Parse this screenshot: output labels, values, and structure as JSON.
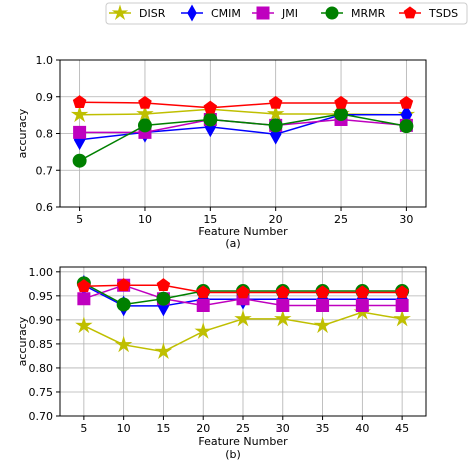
{
  "legend": {
    "placement": "top",
    "entries": [
      {
        "name": "DISR",
        "color": "#bfbf00",
        "marker": "star"
      },
      {
        "name": "CMIM",
        "color": "#0000ff",
        "marker": "diamond"
      },
      {
        "name": "JMI",
        "color": "#bf00bf",
        "marker": "square"
      },
      {
        "name": "MRMR",
        "color": "#008000",
        "marker": "circle"
      },
      {
        "name": "TSDS",
        "color": "#ff0000",
        "marker": "pentagon"
      }
    ]
  },
  "chart_data": [
    {
      "type": "line",
      "caption": "(a)",
      "xlabel": "Feature Number",
      "ylabel": "accuracy",
      "xlim": [
        3.5,
        31.5
      ],
      "ylim": [
        0.6,
        1.0
      ],
      "xticks": [
        5,
        10,
        15,
        20,
        25,
        30
      ],
      "yticks": [
        0.6,
        0.7,
        0.8,
        0.9,
        1.0
      ],
      "ytick_labels": [
        "0.6",
        "0.7",
        "0.8",
        "0.9",
        "1.0"
      ],
      "grid": true,
      "x": [
        5,
        10,
        15,
        20,
        25,
        30
      ],
      "series": [
        {
          "name": "DISR",
          "values": [
            0.851,
            0.853,
            0.866,
            0.853,
            0.853,
            0.851
          ]
        },
        {
          "name": "CMIM",
          "values": [
            0.783,
            0.803,
            0.818,
            0.798,
            0.851,
            0.851
          ]
        },
        {
          "name": "JMI",
          "values": [
            0.803,
            0.803,
            0.838,
            0.822,
            0.838,
            0.822
          ]
        },
        {
          "name": "MRMR",
          "values": [
            0.726,
            0.822,
            0.838,
            0.822,
            0.853,
            0.82
          ]
        },
        {
          "name": "TSDS",
          "values": [
            0.885,
            0.883,
            0.87,
            0.883,
            0.883,
            0.883
          ]
        }
      ]
    },
    {
      "type": "line",
      "caption": "(b)",
      "xlabel": "Feature Number",
      "ylabel": "accuracy",
      "xlim": [
        2.0,
        48.0
      ],
      "ylim": [
        0.7,
        1.01
      ],
      "xticks": [
        5,
        10,
        15,
        20,
        25,
        30,
        35,
        40,
        45
      ],
      "yticks": [
        0.7,
        0.75,
        0.8,
        0.85,
        0.9,
        0.95,
        1.0
      ],
      "ytick_labels": [
        "0.70",
        "0.75",
        "0.80",
        "0.85",
        "0.90",
        "0.95",
        "1.00"
      ],
      "grid": true,
      "x": [
        5,
        10,
        15,
        20,
        25,
        30,
        35,
        40,
        45
      ],
      "series": [
        {
          "name": "DISR",
          "values": [
            0.888,
            0.848,
            0.834,
            0.876,
            0.902,
            0.902,
            0.888,
            0.916,
            0.902
          ]
        },
        {
          "name": "CMIM",
          "values": [
            0.972,
            0.929,
            0.929,
            0.943,
            0.943,
            0.943,
            0.943,
            0.943,
            0.943
          ]
        },
        {
          "name": "JMI",
          "values": [
            0.944,
            0.972,
            0.944,
            0.93,
            0.944,
            0.93,
            0.93,
            0.93,
            0.93
          ]
        },
        {
          "name": "MRMR",
          "values": [
            0.976,
            0.932,
            0.944,
            0.96,
            0.96,
            0.96,
            0.96,
            0.96,
            0.96
          ]
        },
        {
          "name": "TSDS",
          "values": [
            0.97,
            0.972,
            0.972,
            0.957,
            0.957,
            0.957,
            0.957,
            0.957,
            0.957
          ]
        }
      ]
    }
  ]
}
